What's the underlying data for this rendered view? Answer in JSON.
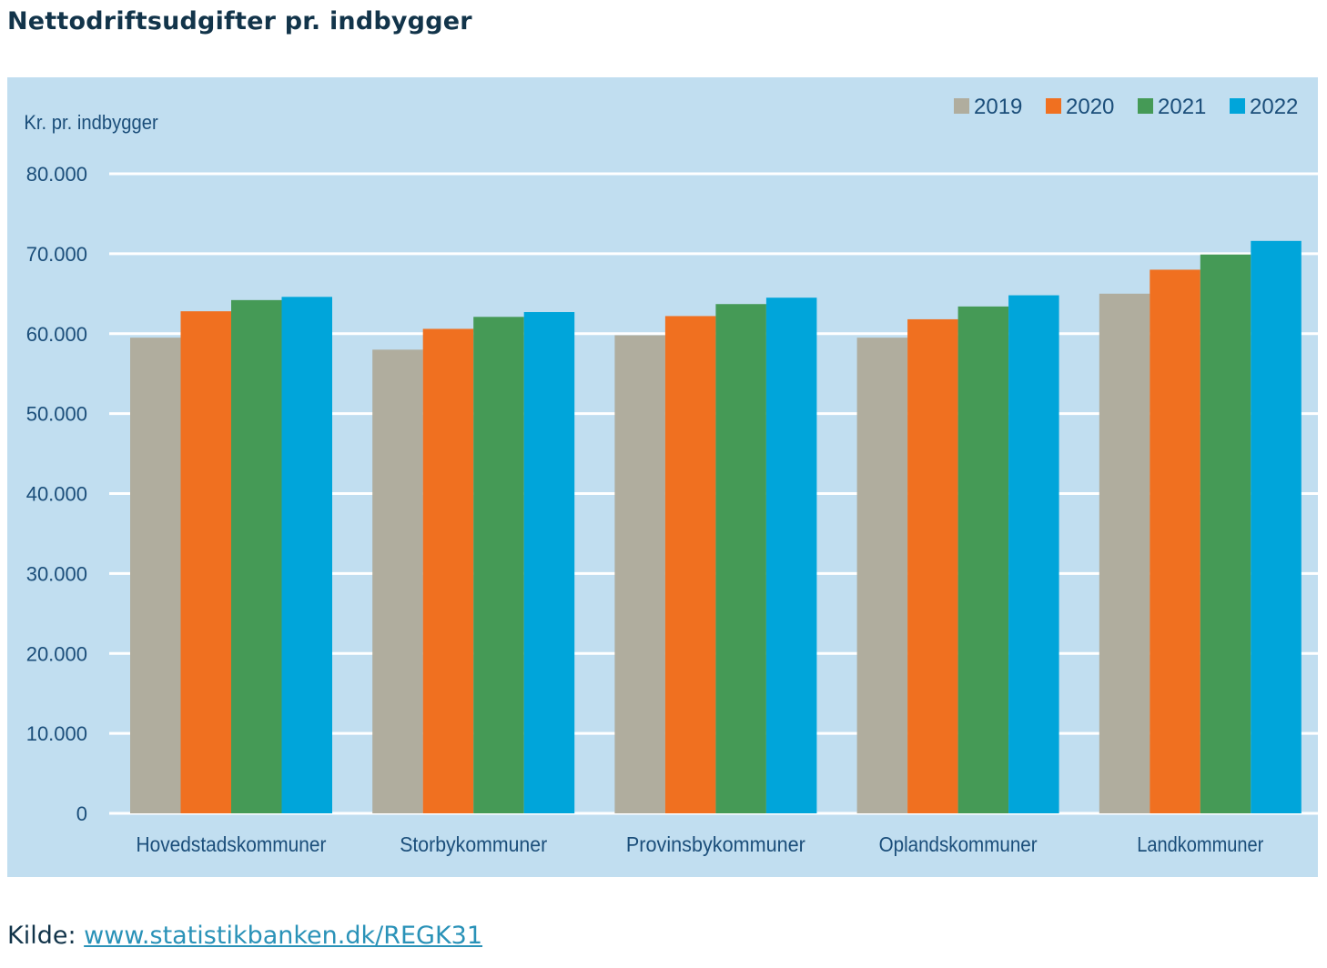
{
  "page": {
    "title": "Nettodriftsudgifter pr. indbygger",
    "source_label": "Kilde:",
    "source_link": "www.statistikbanken.dk/REGK31"
  },
  "chart_data": {
    "type": "bar",
    "title": "Nettodriftsudgifter pr. indbygger",
    "ylabel": "Kr. pr. indbygger",
    "xlabel": "",
    "ylim": [
      0,
      80000
    ],
    "yticks": [
      0,
      10000,
      20000,
      30000,
      40000,
      50000,
      60000,
      70000,
      80000
    ],
    "ytick_labels": [
      "0",
      "10.000",
      "20.000",
      "30.000",
      "40.000",
      "50.000",
      "60.000",
      "70.000",
      "80.000"
    ],
    "grid": true,
    "legend_position": "top-right",
    "categories": [
      "Hovedstadskommuner",
      "Storbykommuner",
      "Provinsbykommuner",
      "Oplandskommuner",
      "Landkommuner"
    ],
    "series": [
      {
        "name": "2019",
        "color": "#b0ad9e",
        "values": [
          59500,
          58000,
          59800,
          59500,
          65000
        ]
      },
      {
        "name": "2020",
        "color": "#f07020",
        "values": [
          62800,
          60600,
          62200,
          61800,
          68000
        ]
      },
      {
        "name": "2021",
        "color": "#459a56",
        "values": [
          64200,
          62100,
          63700,
          63400,
          69900
        ]
      },
      {
        "name": "2022",
        "color": "#00a5da",
        "values": [
          64600,
          62700,
          64500,
          64800,
          71600
        ]
      }
    ]
  }
}
